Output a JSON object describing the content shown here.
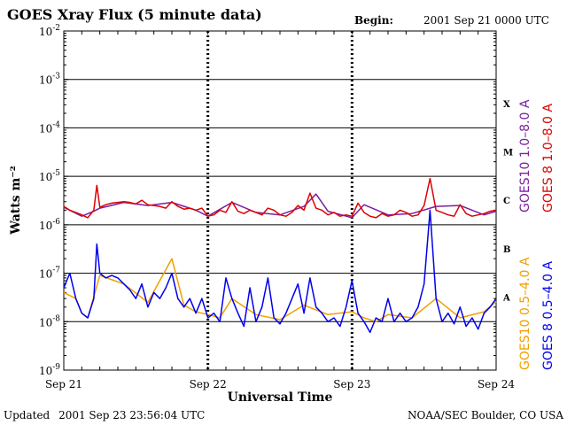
{
  "header": {
    "title": "GOES Xray Flux (5 minute data)",
    "begin_label": "Begin:",
    "begin_value": "2001 Sep 21 0000 UTC"
  },
  "footer": {
    "updated_label": "Updated",
    "updated_value": "2001 Sep 23 23:56:04 UTC",
    "credit": "NOAA/SEC Boulder, CO USA"
  },
  "colors": {
    "goes8_long": "#dd0000",
    "goes10_long": "#7a1fa0",
    "goes8_short": "#0000ee",
    "goes10_short": "#f0a000",
    "grid": "#000000"
  },
  "chart_data": {
    "type": "line",
    "title": "GOES Xray Flux (5 minute data)",
    "xlabel": "Universal Time",
    "ylabel": "Watts m⁻²",
    "y_scale": "log",
    "ylim": [
      1e-09,
      0.01
    ],
    "xlim": [
      0,
      72
    ],
    "x_unit": "hours since 2001 Sep 21 0000 UTC",
    "x_ticks": [
      {
        "label": "Sep 21",
        "value": 0
      },
      {
        "label": "Sep 22",
        "value": 24
      },
      {
        "label": "Sep 23",
        "value": 48
      },
      {
        "label": "Sep 24",
        "value": 72
      }
    ],
    "y_ticks": [
      {
        "base": "10",
        "exp": "-2",
        "value": 0.01
      },
      {
        "base": "10",
        "exp": "-3",
        "value": 0.001
      },
      {
        "base": "10",
        "exp": "-4",
        "value": 0.0001
      },
      {
        "base": "10",
        "exp": "-5",
        "value": 1e-05
      },
      {
        "base": "10",
        "exp": "-6",
        "value": 1e-06
      },
      {
        "base": "10",
        "exp": "-7",
        "value": 1e-07
      },
      {
        "base": "10",
        "exp": "-8",
        "value": 1e-08
      },
      {
        "base": "10",
        "exp": "-9",
        "value": 1e-09
      }
    ],
    "flare_classes": [
      {
        "label": "X",
        "value": 0.00032
      },
      {
        "label": "M",
        "value": 3.2e-05
      },
      {
        "label": "C",
        "value": 3.2e-06
      },
      {
        "label": "B",
        "value": 3.2e-07
      },
      {
        "label": "A",
        "value": 3.2e-08
      }
    ],
    "grid": true,
    "series": [
      {
        "name": "GOES 8 1.0–8.0 A",
        "x": [
          0,
          1,
          2,
          3,
          4,
          5,
          5.5,
          6,
          7,
          8,
          9,
          10,
          11,
          12,
          13,
          14,
          15,
          16,
          17,
          18,
          19,
          20,
          21,
          22,
          23,
          24,
          25,
          26,
          27,
          28,
          29,
          30,
          31,
          32,
          33,
          34,
          35,
          36,
          37,
          38,
          39,
          40,
          41,
          42,
          43,
          44,
          45,
          46,
          47,
          48,
          49,
          50,
          51,
          52,
          53,
          54,
          55,
          56,
          57,
          58,
          59,
          60,
          61,
          62,
          63,
          64,
          65,
          66,
          67,
          68,
          69,
          70,
          71,
          72
        ],
        "y": [
          2.4e-06,
          2e-06,
          1.8e-06,
          1.6e-06,
          1.4e-06,
          2e-06,
          6.5e-06,
          2.3e-06,
          2.6e-06,
          2.8e-06,
          2.9e-06,
          3e-06,
          2.9e-06,
          2.7e-06,
          3.2e-06,
          2.6e-06,
          2.5e-06,
          2.4e-06,
          2.2e-06,
          3e-06,
          2.4e-06,
          2.1e-06,
          2.2e-06,
          2e-06,
          2.2e-06,
          1.5e-06,
          1.6e-06,
          2e-06,
          1.8e-06,
          3e-06,
          1.9e-06,
          1.7e-06,
          2e-06,
          1.8e-06,
          1.6e-06,
          2.2e-06,
          2e-06,
          1.6e-06,
          1.5e-06,
          1.8e-06,
          2.5e-06,
          2e-06,
          4.5e-06,
          2.2e-06,
          2e-06,
          1.6e-06,
          1.8e-06,
          1.5e-06,
          1.6e-06,
          1.5e-06,
          2.8e-06,
          1.8e-06,
          1.5e-06,
          1.4e-06,
          1.7e-06,
          1.5e-06,
          1.6e-06,
          2e-06,
          1.8e-06,
          1.5e-06,
          1.6e-06,
          2.5e-06,
          9e-06,
          2e-06,
          1.8e-06,
          1.6e-06,
          1.5e-06,
          2.6e-06,
          1.7e-06,
          1.5e-06,
          1.6e-06,
          1.7e-06,
          1.9e-06,
          2e-06
        ]
      },
      {
        "name": "GOES10 1.0–8.0 A",
        "x": [
          0,
          3,
          5,
          6,
          10,
          14,
          18,
          22,
          24,
          28,
          32,
          36,
          40,
          42,
          44,
          48,
          50,
          54,
          58,
          62,
          66,
          70,
          72
        ],
        "y": [
          2.3e-06,
          1.5e-06,
          1.9e-06,
          2.2e-06,
          2.9e-06,
          2.5e-06,
          2.9e-06,
          2e-06,
          1.5e-06,
          2.9e-06,
          1.8e-06,
          1.6e-06,
          2.4e-06,
          4.3e-06,
          1.9e-06,
          1.4e-06,
          2.6e-06,
          1.6e-06,
          1.7e-06,
          2.4e-06,
          2.5e-06,
          1.6e-06,
          1.9e-06
        ]
      },
      {
        "name": "GOES 8 0.5–4.0 A",
        "x": [
          0,
          1,
          2,
          3,
          4,
          5,
          5.5,
          6,
          7,
          8,
          9,
          10,
          11,
          12,
          13,
          14,
          15,
          16,
          17,
          18,
          19,
          20,
          21,
          22,
          23,
          24,
          25,
          26,
          27,
          28,
          29,
          30,
          31,
          32,
          33,
          34,
          35,
          36,
          37,
          38,
          39,
          40,
          41,
          42,
          43,
          44,
          45,
          46,
          47,
          48,
          49,
          50,
          51,
          52,
          53,
          54,
          55,
          56,
          57,
          58,
          59,
          60,
          61,
          62,
          63,
          64,
          65,
          66,
          67,
          68,
          69,
          70,
          71,
          72
        ],
        "y": [
          5e-08,
          1e-07,
          3e-08,
          1.5e-08,
          1.2e-08,
          3e-08,
          4e-07,
          1e-07,
          8e-08,
          9e-08,
          8e-08,
          6e-08,
          4.5e-08,
          3e-08,
          6e-08,
          2e-08,
          4e-08,
          3e-08,
          5e-08,
          1e-07,
          3e-08,
          2e-08,
          3e-08,
          1.5e-08,
          3e-08,
          1.2e-08,
          1.5e-08,
          1e-08,
          8e-08,
          3e-08,
          1.5e-08,
          8e-09,
          5e-08,
          1e-08,
          2e-08,
          8e-08,
          1.2e-08,
          9e-09,
          1.5e-08,
          3e-08,
          6e-08,
          1.5e-08,
          8e-08,
          2e-08,
          1.5e-08,
          1e-08,
          1.2e-08,
          8e-09,
          2e-08,
          7e-08,
          1.5e-08,
          1e-08,
          6e-09,
          1.2e-08,
          1e-08,
          3e-08,
          1e-08,
          1.5e-08,
          1e-08,
          1.2e-08,
          2e-08,
          6e-08,
          2e-06,
          3e-08,
          1e-08,
          1.5e-08,
          9e-09,
          2e-08,
          8e-09,
          1.2e-08,
          7e-09,
          1.5e-08,
          2e-08,
          3e-08
        ]
      },
      {
        "name": "GOES10 0.5–4.0 A",
        "x": [
          0,
          2,
          3,
          4,
          6,
          10,
          14,
          18,
          20,
          22,
          24,
          26,
          28,
          32,
          36,
          40,
          44,
          48,
          50,
          52,
          54,
          58,
          62,
          66,
          70,
          72
        ],
        "y": [
          4e-08,
          3e-08,
          1.5e-08,
          1.2e-08,
          9e-08,
          6e-08,
          2.5e-08,
          2e-07,
          2.2e-08,
          1.6e-08,
          1.4e-08,
          1.2e-08,
          3e-08,
          1.4e-08,
          1.1e-08,
          2.2e-08,
          1.4e-08,
          1.6e-08,
          1.2e-08,
          1e-08,
          1.4e-08,
          1.2e-08,
          3e-08,
          1.2e-08,
          1.6e-08,
          2.6e-08
        ]
      }
    ]
  }
}
